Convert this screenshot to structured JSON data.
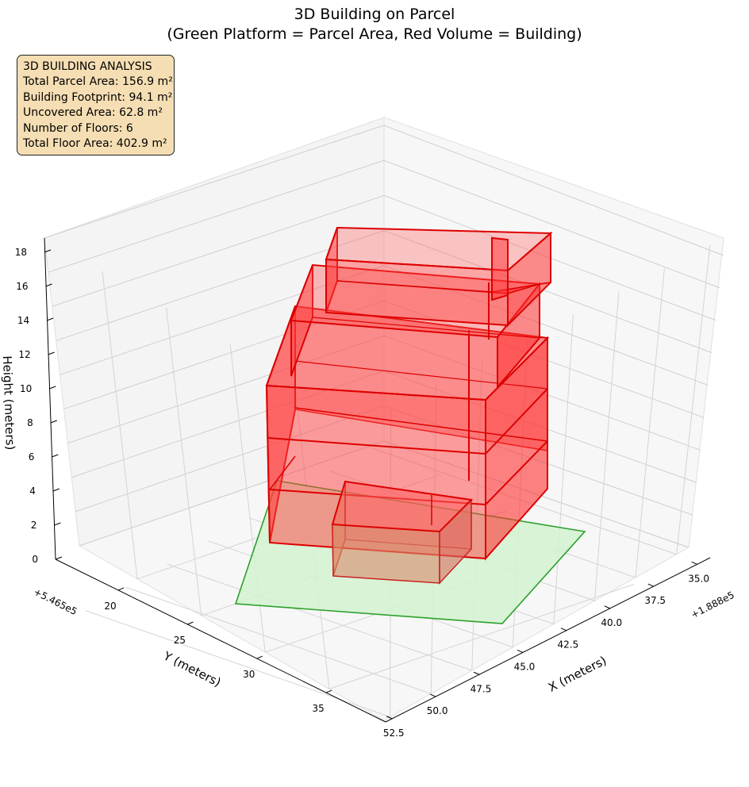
{
  "title_line1": "3D Building on Parcel",
  "title_line2": "(Green Platform = Parcel Area, Red Volume = Building)",
  "info_box": {
    "heading": "3D BUILDING ANALYSIS",
    "lines": [
      "Total Parcel Area: 156.9 m²",
      "Building Footprint: 94.1 m²",
      "Uncovered Area: 62.8 m²",
      "Number of Floors: 6",
      "Total Floor Area: 402.9 m²"
    ]
  },
  "chart_data": {
    "type": "3d-polygon",
    "title": "3D Building on Parcel\n(Green Platform = Parcel Area, Red Volume = Building)",
    "xlabel": "X (meters)",
    "ylabel": "Y (meters)",
    "zlabel": "Height (meters)",
    "x_offset_label": "+1.888e5",
    "y_offset_label": "+5.465e5",
    "xticks": [
      "35.0",
      "37.5",
      "40.0",
      "42.5",
      "45.0",
      "47.5",
      "50.0",
      "52.5"
    ],
    "yticks": [
      "20",
      "25",
      "30",
      "35"
    ],
    "zticks": [
      "0",
      "2",
      "4",
      "6",
      "8",
      "10",
      "12",
      "14",
      "16",
      "18"
    ],
    "zlim": [
      0,
      18
    ],
    "grid": true,
    "colors": {
      "parcel_fill": "#d4f2d2",
      "parcel_edge": "#2ca02c",
      "building_fill": "#ff3030",
      "building_edge": "#dd0000",
      "info_box_bg": "#f5deb3"
    },
    "parcel": {
      "label": "Parcel Area",
      "area_m2": 156.9,
      "height": 0
    },
    "building": {
      "label": "Building",
      "footprint_m2": 94.1,
      "floors": 6,
      "total_floor_area_m2": 402.9
    }
  }
}
